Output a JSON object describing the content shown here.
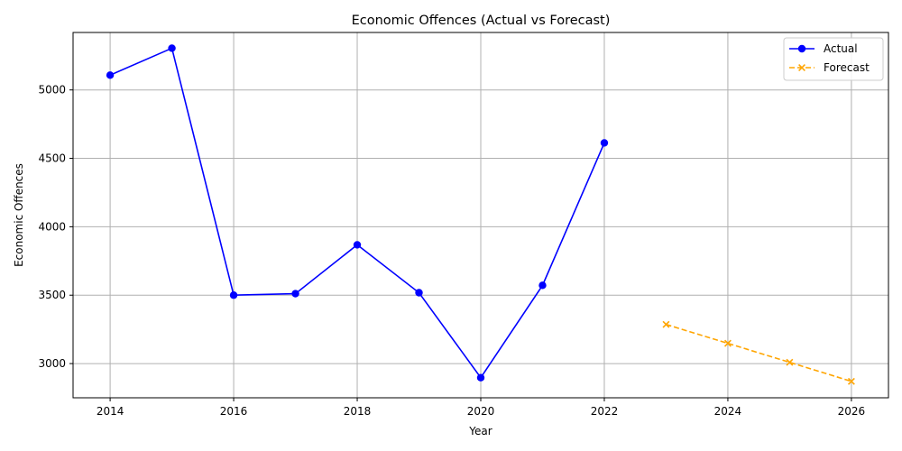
{
  "chart_data": {
    "type": "line",
    "title": "Economic Offences (Actual vs Forecast)",
    "xlabel": "Year",
    "ylabel": "Economic Offences",
    "xlim": [
      2013.4,
      2026.6
    ],
    "ylim": [
      2750,
      5420
    ],
    "xticks": [
      2014,
      2016,
      2018,
      2020,
      2022,
      2024,
      2026
    ],
    "yticks": [
      3000,
      3500,
      4000,
      4500,
      5000
    ],
    "grid": true,
    "legend_position": "top-right",
    "series": [
      {
        "name": "Actual",
        "color": "#0000ff",
        "line_style": "solid",
        "marker": "circle",
        "x": [
          2014,
          2015,
          2016,
          2017,
          2018,
          2019,
          2020,
          2021,
          2022
        ],
        "y": [
          5108,
          5305,
          3500,
          3511,
          3868,
          3518,
          2897,
          3572,
          4613
        ]
      },
      {
        "name": "Forecast",
        "color": "#ffa500",
        "line_style": "dashed",
        "marker": "x",
        "x": [
          2023,
          2024,
          2025,
          2026
        ],
        "y": [
          3286,
          3148,
          3009,
          2870
        ]
      }
    ]
  }
}
